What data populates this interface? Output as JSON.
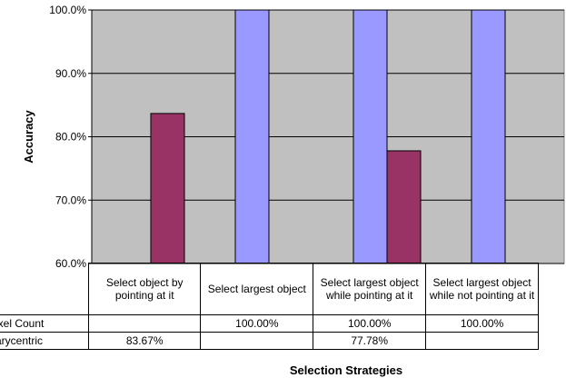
{
  "chart_data": {
    "type": "bar",
    "categories": [
      "Select object by pointing at it",
      "Select largest object",
      "Select largest object while pointing at it",
      "Select largest object while not pointing at it"
    ],
    "series": [
      {
        "name": "Pixel Count",
        "color": "#9999ff",
        "values": [
          null,
          100.0,
          100.0,
          100.0
        ],
        "labels": [
          "",
          "100.00%",
          "100.00%",
          "100.00%"
        ]
      },
      {
        "name": "Barycentric",
        "color": "#993366",
        "values": [
          83.67,
          null,
          77.78,
          null
        ],
        "labels": [
          "83.67%",
          "",
          "77.78%",
          ""
        ]
      }
    ],
    "ylim": [
      60,
      100
    ],
    "yticks": [
      "60.0%",
      "70.0%",
      "80.0%",
      "90.0%",
      "100.0%"
    ],
    "xlabel": "Selection Strategies",
    "ylabel": "Accuracy",
    "grid": true,
    "plot_background": "#c0c0c0",
    "legend": "data table"
  }
}
